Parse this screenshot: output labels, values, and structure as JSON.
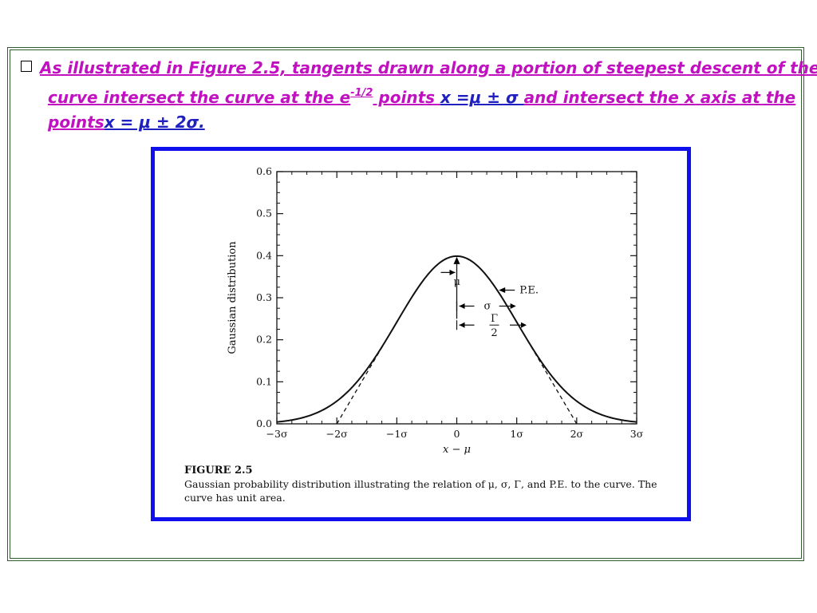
{
  "slide": {
    "line1": "As illustrated in Figure 2.5, tangents drawn along a portion of steepest descent of the",
    "line2a": "curve intersect the curve at the e",
    "line2_sup": "-1/2",
    "line2b": " points ",
    "line2_eq": "x =μ ± σ ",
    "line2c": "and intersect the x axis at the",
    "line3a": "points",
    "line3_eq": "x = μ ± 2σ."
  },
  "figure": {
    "caption_title": "FIGURE 2.5",
    "caption_text": "Gaussian probability distribution illustrating the relation of μ, σ, Γ, and P.E. to the curve. The curve has unit area.",
    "annotations": {
      "pe": "P.E.",
      "mu": "μ",
      "sigma": "σ",
      "gamma_num": "Γ",
      "gamma_den": "2"
    }
  },
  "chart_data": {
    "type": "line",
    "xlabel": "x − μ",
    "ylabel": "Gaussian distribution",
    "xlim": [
      -3,
      3
    ],
    "ylim": [
      0,
      0.6
    ],
    "x_ticks": [
      -3,
      -2,
      -1,
      0,
      1,
      2,
      3
    ],
    "x_tick_labels": [
      "−3σ",
      "−2σ",
      "−1σ",
      "0",
      "1σ",
      "2σ",
      "3σ"
    ],
    "y_ticks": [
      0,
      0.1,
      0.2,
      0.3,
      0.4,
      0.5,
      0.6
    ],
    "y_tick_labels": [
      "0.0",
      "0.1",
      "0.2",
      "0.3",
      "0.4",
      "0.5",
      "0.6"
    ],
    "curve": {
      "x": [
        -3,
        -2.5,
        -2,
        -1.5,
        -1,
        -0.5,
        0,
        0.5,
        1,
        1.5,
        2,
        2.5,
        3
      ],
      "y": [
        0.0044,
        0.0175,
        0.054,
        0.1295,
        0.242,
        0.352,
        0.399,
        0.352,
        0.242,
        0.1295,
        0.054,
        0.0175,
        0.0044
      ]
    },
    "tangents": [
      {
        "from": [
          -2,
          0
        ],
        "to": [
          -1,
          0.242
        ]
      },
      {
        "from": [
          2,
          0
        ],
        "to": [
          1,
          0.242
        ]
      }
    ],
    "grid": false
  }
}
